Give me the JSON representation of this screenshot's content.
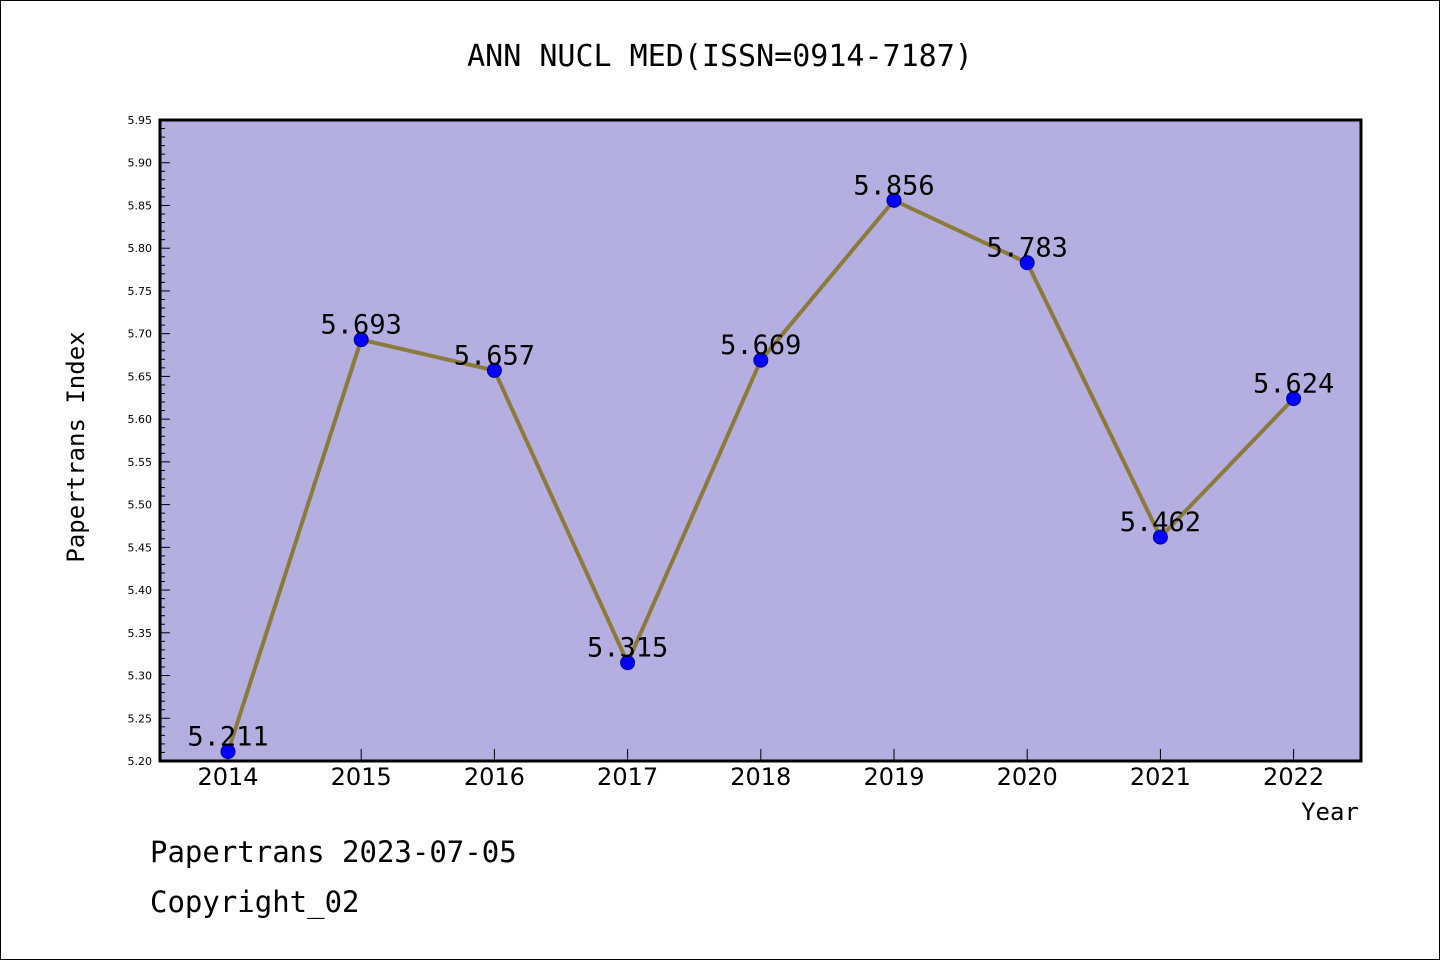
{
  "chart_data": {
    "type": "line",
    "title": "ANN NUCL MED(ISSN=0914-7187)",
    "xlabel": "Year",
    "ylabel": "Papertrans Index",
    "categories": [
      "2014",
      "2015",
      "2016",
      "2017",
      "2018",
      "2019",
      "2020",
      "2021",
      "2022"
    ],
    "values": [
      5.211,
      5.693,
      5.657,
      5.315,
      5.669,
      5.856,
      5.783,
      5.462,
      5.624
    ],
    "data_labels": [
      "5.211",
      "5.693",
      "5.657",
      "5.315",
      "5.669",
      "5.856",
      "5.783",
      "5.462",
      "5.624"
    ],
    "ylim": [
      5.2,
      5.95
    ],
    "yticks": [
      "5.20",
      "5.25",
      "5.30",
      "5.35",
      "5.40",
      "5.45",
      "5.50",
      "5.55",
      "5.60",
      "5.65",
      "5.70",
      "5.75",
      "5.80",
      "5.85",
      "5.90",
      "5.95"
    ],
    "grid": false,
    "legend": "none",
    "colors": {
      "plot_background": "#b5aee1",
      "line": "#8b7b3a",
      "marker": "#0000ff"
    }
  },
  "footer": {
    "line1": "Papertrans 2023-07-05",
    "line2": "Copyright_02"
  }
}
